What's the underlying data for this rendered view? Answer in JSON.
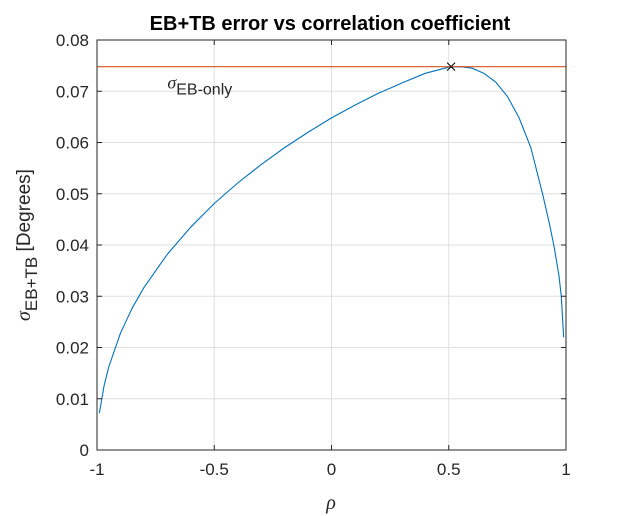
{
  "chart_data": {
    "type": "line",
    "title": "EB+TB error vs correlation coefficient",
    "xlabel": "ρ",
    "ylabel": {
      "symbol": "σ",
      "subscript": "EB+TB",
      "suffix": " [Degrees]"
    },
    "xlim": [
      -1,
      1
    ],
    "ylim": [
      0,
      0.08
    ],
    "xticks": [
      -1,
      -0.5,
      0,
      0.5,
      1
    ],
    "xtick_labels": [
      "-1",
      "-0.5",
      "0",
      "0.5",
      "1"
    ],
    "yticks": [
      0,
      0.01,
      0.02,
      0.03,
      0.04,
      0.05,
      0.06,
      0.07,
      0.08
    ],
    "ytick_labels": [
      "0",
      "0.01",
      "0.02",
      "0.03",
      "0.04",
      "0.05",
      "0.06",
      "0.07",
      "0.08"
    ],
    "grid": true,
    "series": [
      {
        "color": "#0072bd",
        "x": [
          -0.99,
          -0.97,
          -0.95,
          -0.9,
          -0.85,
          -0.8,
          -0.7,
          -0.6,
          -0.5,
          -0.4,
          -0.3,
          -0.2,
          -0.1,
          0,
          0.1,
          0.2,
          0.3,
          0.4,
          0.5,
          0.55,
          0.6,
          0.65,
          0.7,
          0.75,
          0.8,
          0.85,
          0.9,
          0.93,
          0.95,
          0.97,
          0.98,
          0.99
        ],
        "y": [
          0.0072,
          0.0125,
          0.0162,
          0.0228,
          0.0277,
          0.0317,
          0.0382,
          0.0435,
          0.0481,
          0.0521,
          0.0557,
          0.059,
          0.062,
          0.0648,
          0.0673,
          0.0696,
          0.0716,
          0.0735,
          0.0747,
          0.0748,
          0.0745,
          0.0735,
          0.0718,
          0.069,
          0.0648,
          0.059,
          0.05,
          0.044,
          0.0395,
          0.034,
          0.03,
          0.022
        ]
      },
      {
        "color": "#d95319",
        "x": [
          -1,
          1
        ],
        "y": [
          0.0748,
          0.0748
        ]
      }
    ],
    "marker": {
      "x": 0.51,
      "y": 0.0748,
      "symbol": "x"
    },
    "annotation": {
      "symbol": "σ",
      "subscript": "EB-only",
      "x": -0.7,
      "y": 0.0705
    }
  }
}
